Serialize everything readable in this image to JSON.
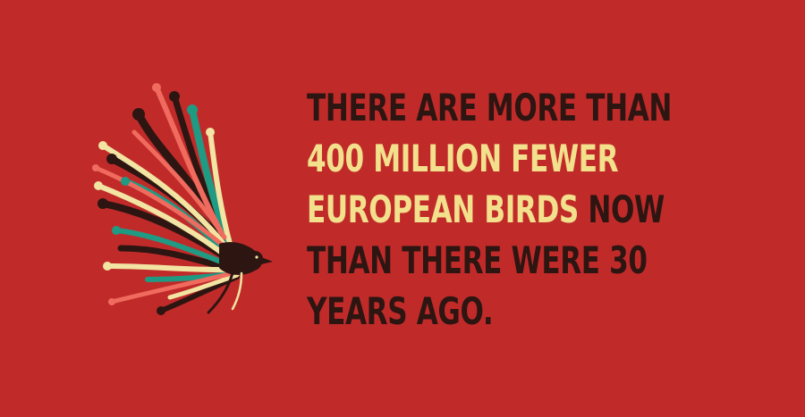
{
  "colors": {
    "background": "#c02b2a",
    "text_dark": "#2d1512",
    "text_highlight": "#f3e08c",
    "feather_teal": "#1f9a83",
    "feather_cream": "#f2e4a2",
    "feather_salmon": "#f06b5e",
    "feather_dark": "#2d1512"
  },
  "illustration": {
    "icon": "abstract-feathered-bird-icon"
  },
  "fact": {
    "line1": "THERE ARE MORE THAN",
    "line2": "400 MILLION FEWER",
    "line3_highlight": "EUROPEAN BIRDS",
    "line3_rest": " NOW",
    "line4": "THAN THERE WERE 30",
    "line5": "YEARS AGO."
  }
}
